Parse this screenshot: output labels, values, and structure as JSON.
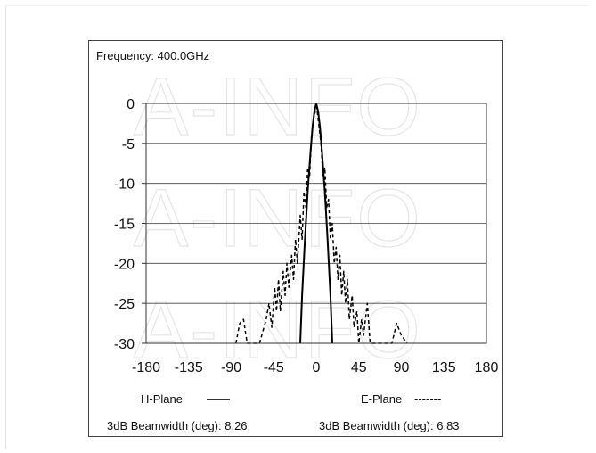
{
  "watermark": "A-INFO",
  "chart_data": {
    "type": "line",
    "title": "Frequency: 400.0GHz",
    "xlim": [
      -180,
      180
    ],
    "ylim": [
      -30,
      0
    ],
    "x_ticks": [
      -180,
      -135,
      -90,
      -45,
      0,
      45,
      90,
      135,
      180
    ],
    "y_ticks": [
      0,
      -5,
      -10,
      -15,
      -20,
      -25,
      -30
    ],
    "grid": "horizontal",
    "series": [
      {
        "name": "H-Plane",
        "legend_sample": "——",
        "style": "solid",
        "color": "#000000",
        "beamwidth_label": "3dB Beamwidth (deg): 8.26",
        "x": [
          -17,
          -15,
          -12,
          -9,
          -6,
          -4,
          -2,
          0,
          2,
          4,
          6,
          9,
          12,
          15,
          17
        ],
        "y": [
          -30,
          -24,
          -17,
          -11,
          -6,
          -3,
          -1,
          0,
          -1,
          -3,
          -6,
          -11,
          -17,
          -24,
          -30
        ]
      },
      {
        "name": "E-Plane",
        "legend_sample": "-------",
        "style": "dashed",
        "color": "#000000",
        "beamwidth_label": "3dB Beamwidth (deg): 6.83",
        "x": [
          -85,
          -81,
          -77,
          -73,
          -60,
          -53,
          -50,
          -47,
          -44,
          -42,
          -40,
          -38,
          -35,
          -33,
          -31,
          -29,
          -26,
          -24,
          -22,
          -20,
          -17,
          -15,
          -13,
          -11,
          -9,
          -7,
          -5,
          -3,
          -1,
          0,
          1,
          3,
          5,
          7,
          9,
          11,
          13,
          15,
          17,
          19,
          21,
          23,
          25,
          27,
          29,
          31,
          33,
          35,
          38,
          40,
          43,
          45,
          48,
          50,
          54,
          57,
          62,
          80,
          85,
          90,
          96
        ],
        "y": [
          -30,
          -27.5,
          -27,
          -30,
          -30,
          -27,
          -25,
          -28,
          -23,
          -26,
          -22,
          -26,
          -21,
          -24,
          -20,
          -23,
          -19,
          -22,
          -17,
          -20,
          -14,
          -17,
          -11,
          -13,
          -8,
          -9,
          -4,
          -2,
          -1,
          0,
          -1,
          -3,
          -5,
          -9,
          -8,
          -13,
          -12,
          -17,
          -15,
          -20,
          -18,
          -22,
          -19,
          -24,
          -21,
          -25,
          -22,
          -27,
          -24,
          -28,
          -26,
          -30,
          -27,
          -29,
          -25,
          -30,
          -30,
          -30,
          -27.5,
          -29,
          -30
        ]
      }
    ]
  }
}
